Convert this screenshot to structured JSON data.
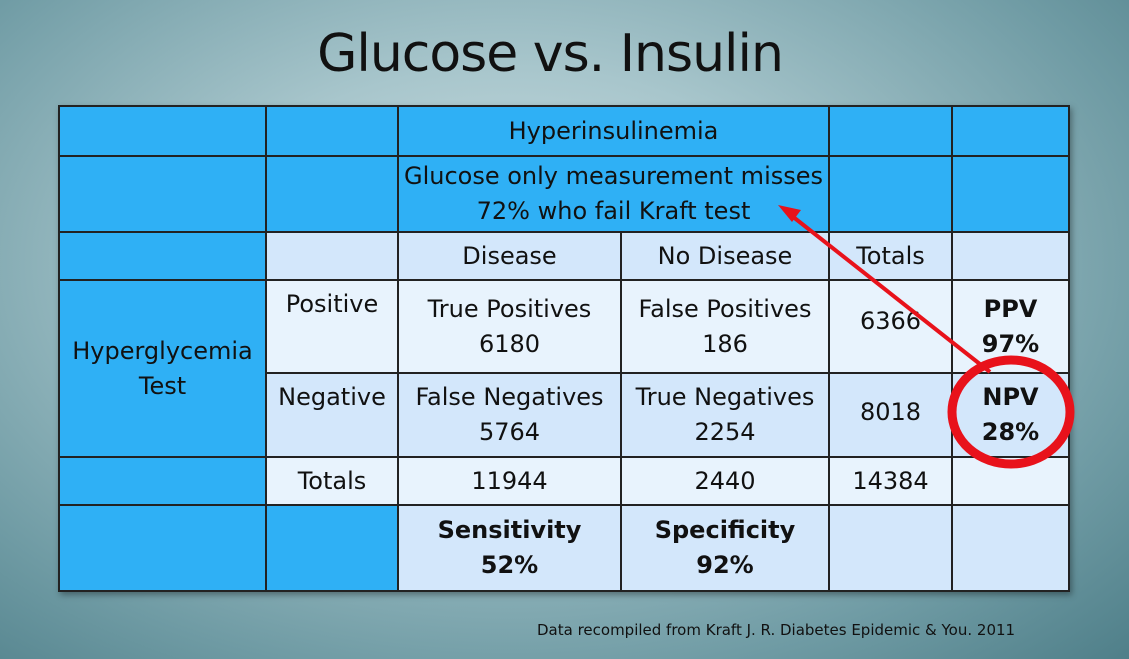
{
  "title": "Glucose vs. Insulin",
  "header": {
    "hyperinsulinemia": "Hyperinsulinemia",
    "note_line1": "Glucose only measurement misses",
    "note_line2": "72% who fail Kraft test"
  },
  "columns": {
    "disease": "Disease",
    "no_disease": "No Disease",
    "totals": "Totals"
  },
  "row_group": {
    "line1": "Hyperglycemia",
    "line2": "Test"
  },
  "positive": {
    "label": "Positive",
    "tp_label": "True Positives",
    "tp_value": "6180",
    "fp_label": "False Positives",
    "fp_value": "186",
    "total": "6366",
    "ppv_label": "PPV",
    "ppv_value": "97%"
  },
  "negative": {
    "label": "Negative",
    "fn_label": "False Negatives",
    "fn_value": "5764",
    "tn_label": "True Negatives",
    "tn_value": "2254",
    "total": "8018",
    "npv_label": "NPV",
    "npv_value": "28%"
  },
  "totals_row": {
    "label": "Totals",
    "disease": "11944",
    "no_disease": "2440",
    "grand": "14384"
  },
  "metrics": {
    "sensitivity_label": "Sensitivity",
    "sensitivity_value": "52%",
    "specificity_label": "Specificity",
    "specificity_value": "92%"
  },
  "footer": "Data recompiled from Kraft J. R. Diabetes Epidemic & You. 2011",
  "colors": {
    "cell_blue": "#2fb0f5",
    "cell_light": "#e8f3fd",
    "cell_mid": "#d3e7fb",
    "annotation_red": "#e8121b"
  }
}
